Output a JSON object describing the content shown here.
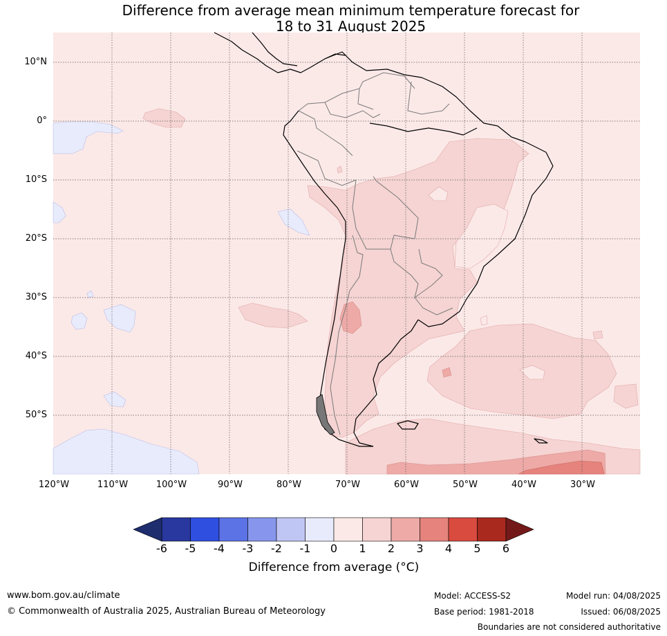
{
  "title": {
    "line1": "Difference from average mean minimum temperature forecast for",
    "line2": "18 to 31 August 2025"
  },
  "map": {
    "lat_labels": [
      "10°N",
      "0°",
      "10°S",
      "20°S",
      "30°S",
      "40°S",
      "50°S"
    ],
    "lon_labels": [
      "120°W",
      "110°W",
      "100°W",
      "90°W",
      "80°W",
      "70°W",
      "60°W",
      "50°W",
      "40°W",
      "30°W"
    ]
  },
  "colorbar": {
    "title": "Difference from average (°C)",
    "ticks": [
      "-6",
      "-5",
      "-4",
      "-3",
      "-2",
      "-1",
      "0",
      "1",
      "2",
      "3",
      "4",
      "5",
      "6"
    ],
    "colors": [
      "#28389e",
      "#2f4fe0",
      "#5c73e6",
      "#8796ec",
      "#c0c6f4",
      "#e8ebfb",
      "#fbe9e8",
      "#f5d4d3",
      "#edaaa7",
      "#e5837c",
      "#d94a3f",
      "#a9291e"
    ],
    "low_extend_color": "#1d2d6e",
    "high_extend_color": "#74191a"
  },
  "footer": {
    "website": "www.bom.gov.au/climate",
    "copyright": "© Commonwealth of Australia 2025, Australian Bureau of Meteorology",
    "model": "Model: ACCESS-S2",
    "base_period": "Base period: 1981-2018",
    "model_run": "Model run: 04/08/2025",
    "issued": "Issued: 06/08/2025",
    "disclaimer": "Boundaries are not considered authoritative"
  }
}
